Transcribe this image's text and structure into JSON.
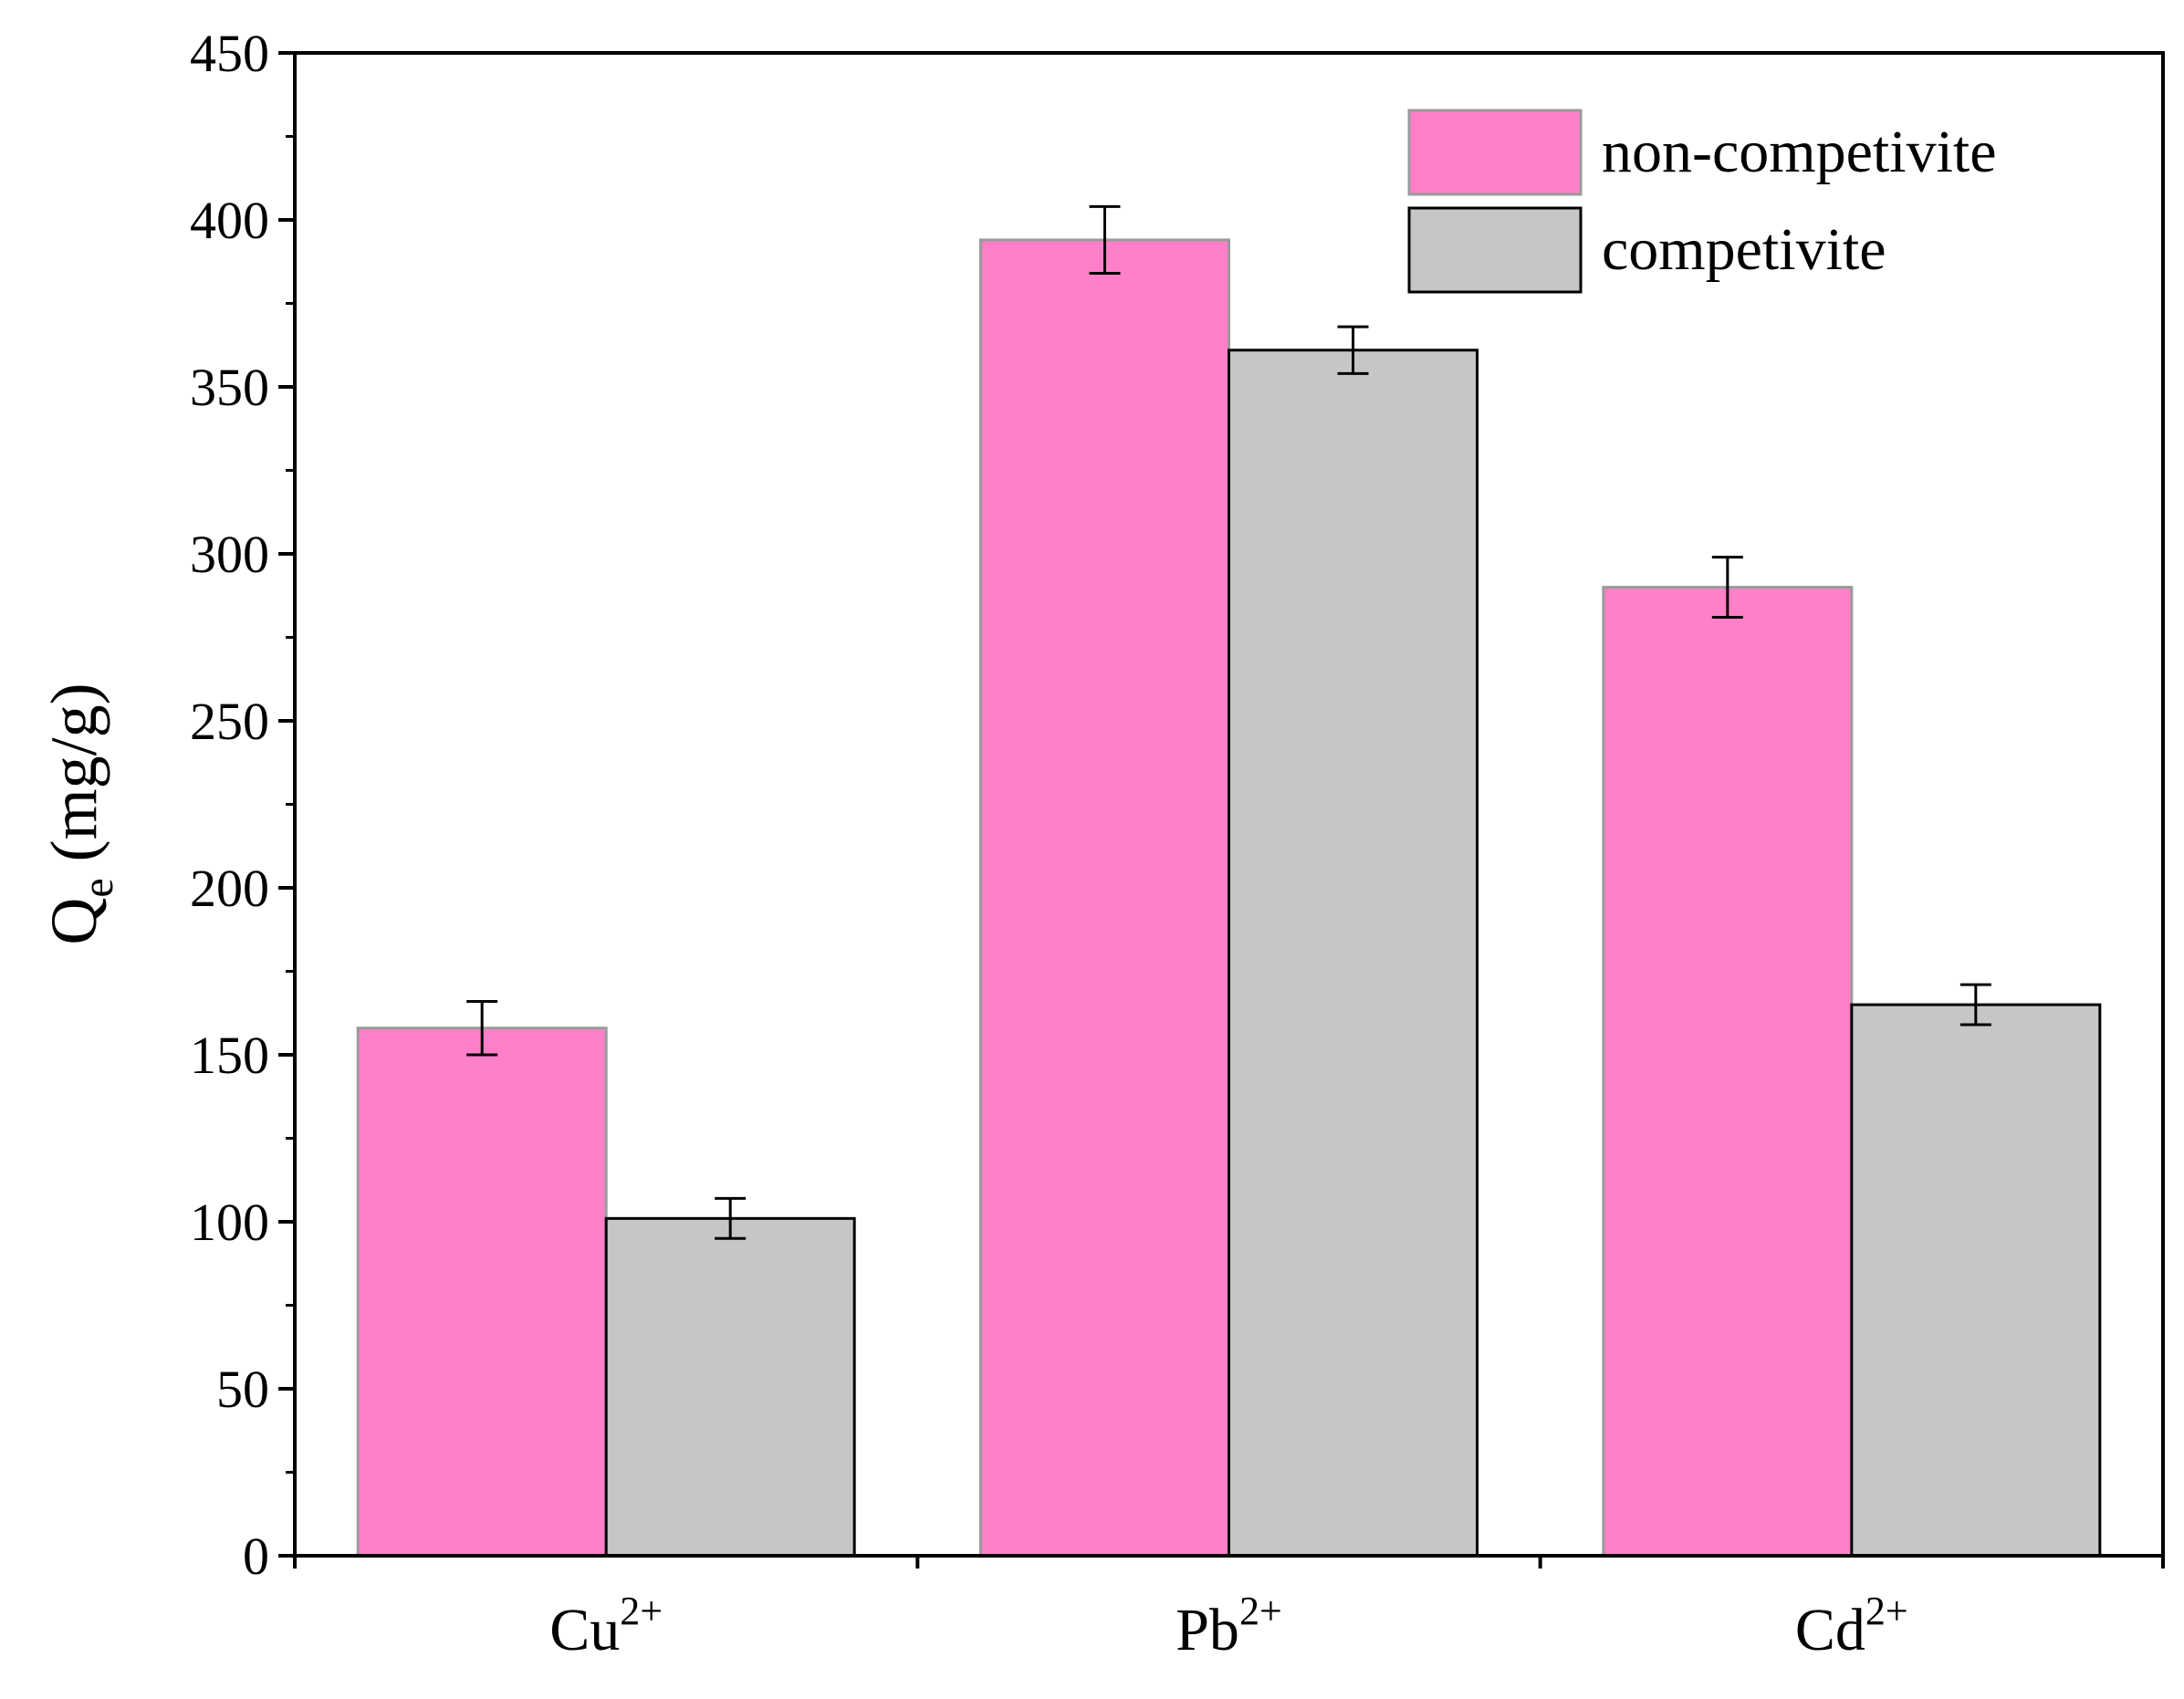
{
  "chart_data": {
    "type": "bar",
    "title": "",
    "xlabel": "",
    "ylabel": {
      "main": "Q",
      "sub": "e",
      "unit": " (mg/g)"
    },
    "ylim": [
      0,
      450
    ],
    "yticks": [
      0,
      50,
      100,
      150,
      200,
      250,
      300,
      350,
      400,
      450
    ],
    "categories": [
      {
        "base": "Cu",
        "sup": "2+"
      },
      {
        "base": "Pb",
        "sup": "2+"
      },
      {
        "base": "Cd",
        "sup": "2+"
      }
    ],
    "series": [
      {
        "name": "non-competivite",
        "color": "#ff80c8",
        "values": [
          158,
          394,
          290
        ],
        "errors": [
          8,
          10,
          9
        ]
      },
      {
        "name": "competivite",
        "color": "#c6c6c6",
        "values": [
          101,
          361,
          165
        ],
        "errors": [
          6,
          7,
          6
        ]
      }
    ],
    "legend_position": "top-right",
    "grid": false
  }
}
